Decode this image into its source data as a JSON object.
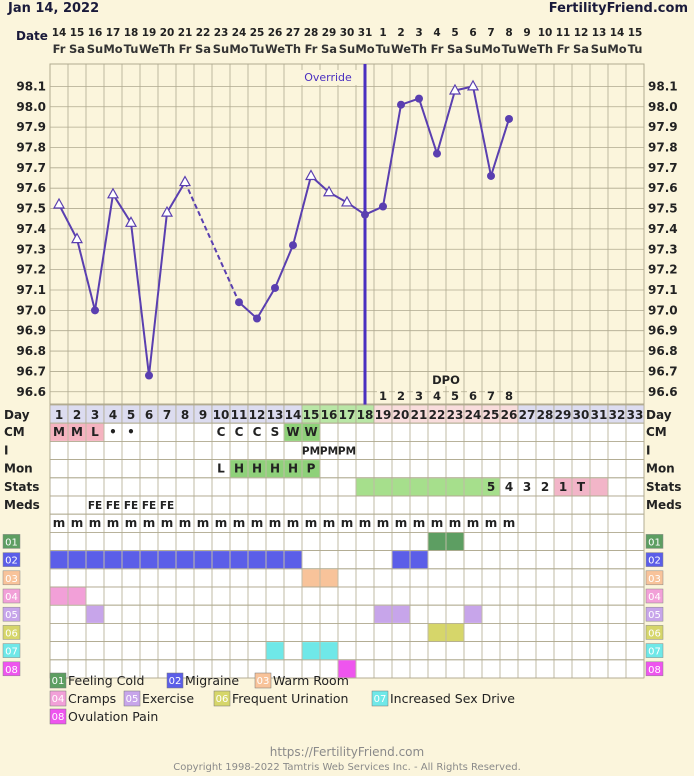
{
  "header": {
    "date": "Jan 14, 2022",
    "site": "FertilityFriend.com"
  },
  "footer": {
    "url": "https://FertilityFriend.com",
    "copyright": "Copyright 1998-2022 Tamtris Web Services Inc. - All Rights Reserved."
  },
  "chart_data": {
    "type": "line",
    "date_label": "Date",
    "dates": [
      "14",
      "15",
      "16",
      "17",
      "18",
      "19",
      "20",
      "21",
      "22",
      "23",
      "24",
      "25",
      "26",
      "27",
      "28",
      "29",
      "30",
      "31",
      "1",
      "2",
      "3",
      "4",
      "5",
      "6",
      "7",
      "8",
      "9",
      "10",
      "11",
      "12",
      "13",
      "14",
      "15"
    ],
    "weekdays": [
      "Fr",
      "Sa",
      "Su",
      "Mo",
      "Tu",
      "We",
      "Th",
      "Fr",
      "Sa",
      "Su",
      "Mo",
      "Tu",
      "We",
      "Th",
      "Fr",
      "Sa",
      "Su",
      "Mo",
      "Tu",
      "We",
      "Th",
      "Fr",
      "Sa",
      "Su",
      "Mo",
      "Tu",
      "We",
      "Th",
      "Fr",
      "Sa",
      "Su",
      "Mo",
      "Tu"
    ],
    "cycle_days": [
      1,
      2,
      3,
      4,
      5,
      6,
      7,
      8,
      9,
      10,
      11,
      12,
      13,
      14,
      15,
      16,
      17,
      18,
      19,
      20,
      21,
      22,
      23,
      24,
      25,
      26,
      27,
      28,
      29,
      30,
      31,
      32,
      33
    ],
    "temperatures": [
      97.52,
      97.35,
      97.0,
      97.57,
      97.43,
      96.68,
      97.48,
      97.63,
      null,
      null,
      97.04,
      96.96,
      97.11,
      97.32,
      97.66,
      97.58,
      97.53,
      97.47,
      97.51,
      98.01,
      98.04,
      97.77,
      98.08,
      98.1,
      97.66,
      97.94,
      null,
      null,
      null,
      null,
      null,
      null,
      null
    ],
    "markers": [
      "triangle",
      "triangle",
      "circle",
      "triangle",
      "triangle",
      "circle",
      "triangle",
      "triangle",
      null,
      null,
      "circle",
      "circle",
      "circle",
      "circle",
      "triangle",
      "triangle",
      "triangle",
      "circle",
      "circle",
      "circle",
      "circle",
      "circle",
      "triangle",
      "triangle",
      "circle",
      "circle",
      null,
      null,
      null,
      null,
      null,
      null,
      null
    ],
    "y_ticks": [
      "96.6",
      "96.7",
      "96.8",
      "96.9",
      "97.0",
      "97.1",
      "97.2",
      "97.3",
      "97.4",
      "97.5",
      "97.6",
      "97.7",
      "97.8",
      "97.9",
      "98.0",
      "98.1"
    ],
    "ylim": [
      96.54,
      98.21
    ],
    "coverline_day": 18,
    "override_label": "Override",
    "dpo_label": "DPO",
    "dpo": [
      null,
      null,
      null,
      null,
      null,
      null,
      null,
      null,
      null,
      null,
      null,
      null,
      null,
      null,
      null,
      null,
      null,
      null,
      "1",
      "2",
      "3",
      "4",
      "5",
      "6",
      "7",
      "8",
      null,
      null,
      null,
      null,
      null,
      null,
      null
    ],
    "rows": [
      {
        "label": "Day"
      },
      {
        "label": "CM",
        "values": [
          "M",
          "M",
          "L",
          "•",
          "•",
          "",
          "",
          "",
          "",
          "C",
          "C",
          "C",
          "S",
          "W",
          "W",
          "",
          "",
          "",
          "",
          "",
          "",
          "",
          "",
          "",
          "",
          "",
          "",
          "",
          "",
          "",
          "",
          "",
          ""
        ],
        "colors": [
          "#f5b3c0",
          "#f5b3c0",
          "#f5b3c0",
          "",
          "",
          "",
          "",
          "",
          "",
          "",
          "",
          "",
          "",
          "#8fd17a",
          "#8fd17a",
          "",
          "",
          "",
          "",
          "",
          "",
          "",
          "",
          "",
          "",
          "",
          "",
          "",
          "",
          "",
          "",
          "",
          ""
        ]
      },
      {
        "label": "I",
        "values": [
          "",
          "",
          "",
          "",
          "",
          "",
          "",
          "",
          "",
          "",
          "",
          "",
          "",
          "",
          "PM",
          "PM",
          "PM",
          "",
          "",
          "",
          "",
          "",
          "",
          "",
          "",
          "",
          "",
          "",
          "",
          "",
          "",
          "",
          ""
        ]
      },
      {
        "label": "Mon",
        "values": [
          "",
          "",
          "",
          "",
          "",
          "",
          "",
          "",
          "",
          "L",
          "H",
          "H",
          "H",
          "H",
          "P",
          "",
          "",
          "",
          "",
          "",
          "",
          "",
          "",
          "",
          "",
          "",
          "",
          "",
          "",
          "",
          "",
          "",
          ""
        ],
        "colors": [
          "",
          "",
          "",
          "",
          "",
          "",
          "",
          "",
          "",
          "",
          "#8fd17a",
          "#8fd17a",
          "#8fd17a",
          "#8fd17a",
          "#8fd17a",
          "",
          "",
          "",
          "",
          "",
          "",
          "",
          "",
          "",
          "",
          "",
          "",
          "",
          "",
          "",
          "",
          "",
          ""
        ]
      },
      {
        "label": "Stats",
        "values": [
          "",
          "",
          "",
          "",
          "",
          "",
          "",
          "",
          "",
          "",
          "",
          "",
          "",
          "",
          "",
          "",
          "",
          "",
          "",
          "",
          "",
          "",
          "",
          "",
          "5",
          "4",
          "3",
          "2",
          "1",
          "T",
          "",
          "",
          ""
        ],
        "colors": [
          "",
          "",
          "",
          "",
          "",
          "",
          "",
          "",
          "",
          "",
          "",
          "",
          "",
          "",
          "",
          "",
          "",
          "#a6df8c",
          "#a6df8c",
          "#a6df8c",
          "#a6df8c",
          "#a6df8c",
          "#a6df8c",
          "#a6df8c",
          "#a6df8c",
          "",
          "",
          "",
          "#f2b5c8",
          "#f2b5c8",
          "#f2b5c8",
          "",
          ""
        ]
      },
      {
        "label": "Meds",
        "values": [
          "",
          "",
          "FE",
          "FE",
          "FE",
          "FE",
          "FE",
          "",
          "",
          "",
          "",
          "",
          "",
          "",
          "",
          "",
          "",
          "",
          "",
          "",
          "",
          "",
          "",
          "",
          "",
          "",
          "",
          "",
          "",
          "",
          "",
          "",
          ""
        ]
      },
      {
        "label": "",
        "values": [
          "m",
          "m",
          "m",
          "m",
          "m",
          "m",
          "m",
          "m",
          "m",
          "m",
          "m",
          "m",
          "m",
          "m",
          "m",
          "m",
          "m",
          "m",
          "m",
          "m",
          "m",
          "m",
          "m",
          "m",
          "m",
          "m",
          "",
          "",
          "",
          "",
          "",
          "",
          ""
        ]
      }
    ],
    "symptoms": [
      {
        "code": "01",
        "name": "Feeling Cold",
        "color": "#5d9e62",
        "days": [
          22,
          23
        ]
      },
      {
        "code": "02",
        "name": "Migraine",
        "color": "#5b5ee8",
        "days": [
          1,
          2,
          3,
          4,
          5,
          6,
          7,
          8,
          9,
          10,
          11,
          12,
          13,
          14,
          20,
          21
        ]
      },
      {
        "code": "03",
        "name": "Warm Room",
        "color": "#f8c39a",
        "days": [
          15,
          16
        ]
      },
      {
        "code": "04",
        "name": "Cramps",
        "color": "#f2a0d8",
        "days": [
          1,
          2
        ]
      },
      {
        "code": "05",
        "name": "Exercise",
        "color": "#c7a5ea",
        "days": [
          3,
          19,
          20,
          24
        ]
      },
      {
        "code": "06",
        "name": "Frequent Urination",
        "color": "#d6d66a",
        "days": [
          22,
          23
        ]
      },
      {
        "code": "07",
        "name": "Increased Sex Drive",
        "color": "#6fe8e8",
        "days": [
          13,
          15,
          16
        ]
      },
      {
        "code": "08",
        "name": "Ovulation Pain",
        "color": "#ee55ee",
        "days": [
          17
        ]
      }
    ]
  },
  "colors": {
    "line": "#5a3fb0",
    "coverline": "#4a2fc0",
    "bg": "#fbf5dc",
    "grid": "#b0aa90",
    "header_bg": "#dcdcf0",
    "post_ov_bg": "#f8dcdc"
  }
}
